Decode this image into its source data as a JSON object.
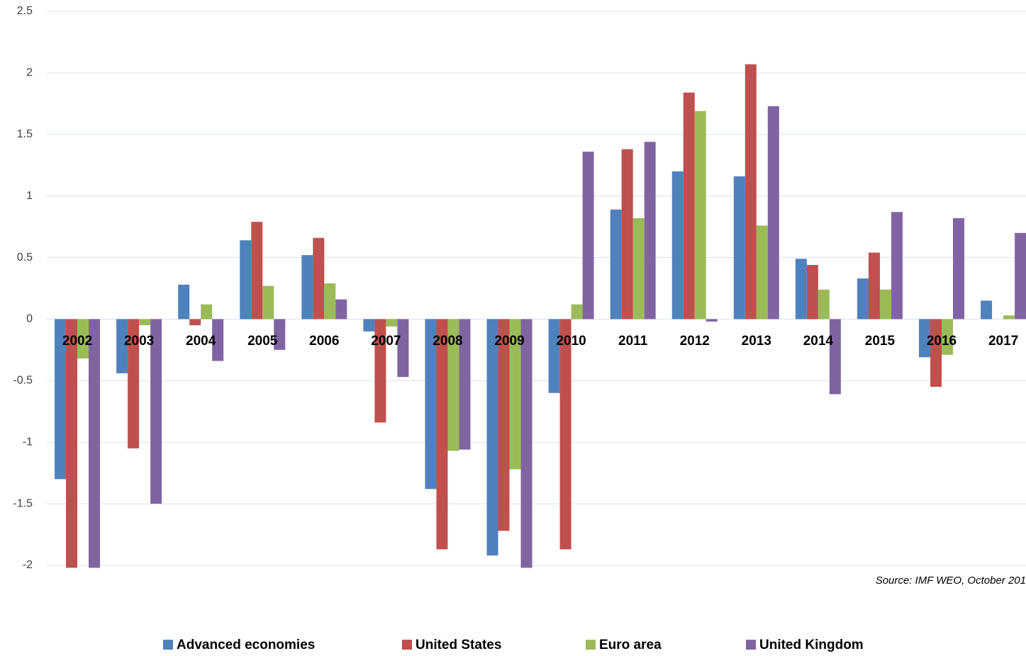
{
  "chart_data": {
    "type": "bar",
    "categories": [
      "2002",
      "2003",
      "2004",
      "2005",
      "2006",
      "2007",
      "2008",
      "2009",
      "2010",
      "2011",
      "2012",
      "2013",
      "2014",
      "2015",
      "2016",
      "2017"
    ],
    "series": [
      {
        "name": "Advanced economies",
        "color": "#4f81bd",
        "values": [
          -1.3,
          -0.44,
          0.28,
          0.64,
          0.52,
          -0.1,
          -1.38,
          -1.92,
          -0.6,
          0.89,
          1.2,
          1.16,
          0.49,
          0.33,
          -0.31,
          0.15
        ]
      },
      {
        "name": "United States",
        "color": "#c0504d",
        "values": [
          -2.02,
          -1.05,
          -0.05,
          0.79,
          0.66,
          -0.84,
          -1.87,
          -1.72,
          -1.87,
          1.38,
          1.84,
          2.07,
          0.44,
          0.54,
          -0.55,
          null
        ]
      },
      {
        "name": "Euro area",
        "color": "#9bbb59",
        "values": [
          -0.32,
          -0.05,
          0.12,
          0.27,
          0.29,
          -0.06,
          -1.07,
          -1.22,
          0.12,
          0.82,
          1.69,
          0.76,
          0.24,
          0.24,
          -0.29,
          0.03
        ]
      },
      {
        "name": "United Kingdom",
        "color": "#8064a2",
        "values": [
          -2.02,
          -1.5,
          -0.34,
          -0.25,
          0.16,
          -0.47,
          -1.06,
          -2.02,
          1.36,
          1.44,
          -0.02,
          1.73,
          -0.61,
          0.87,
          0.82,
          0.7
        ]
      }
    ],
    "ylim": [
      -2,
      2.5
    ],
    "yticks": [
      -2,
      -1.5,
      -1,
      -0.5,
      0,
      0.5,
      1,
      1.5,
      2,
      2.5
    ],
    "grid": true,
    "legend": "bottom",
    "source": "Source: IMF WEO, October 201"
  }
}
